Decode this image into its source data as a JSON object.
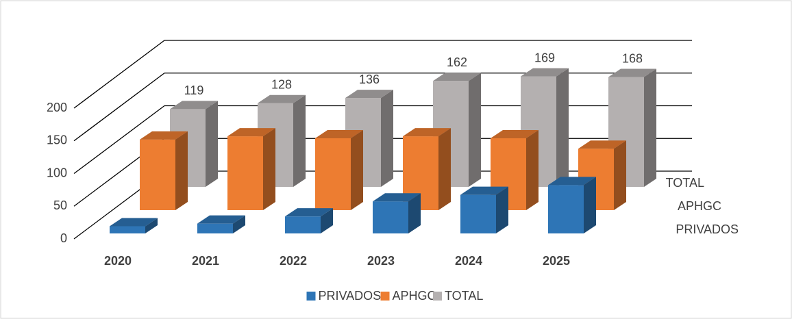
{
  "chart_data": {
    "type": "bar3d",
    "categories": [
      "2020",
      "2021",
      "2022",
      "2023",
      "2024",
      "2025"
    ],
    "series": [
      {
        "name": "PRIVADOS",
        "color": "#2e75b6",
        "values": [
          11,
          15,
          26,
          49,
          59,
          74
        ]
      },
      {
        "name": "APHGC",
        "color": "#ed7d31",
        "values": [
          108,
          113,
          110,
          113,
          110,
          94
        ]
      },
      {
        "name": "TOTAL",
        "color": "#b4b0b0",
        "values": [
          119,
          128,
          136,
          162,
          169,
          168
        ],
        "value_labels": true
      }
    ],
    "ylim": [
      0,
      200
    ],
    "yticks": [
      0,
      50,
      100,
      150,
      200
    ],
    "grid": true,
    "legend": "bottom"
  }
}
